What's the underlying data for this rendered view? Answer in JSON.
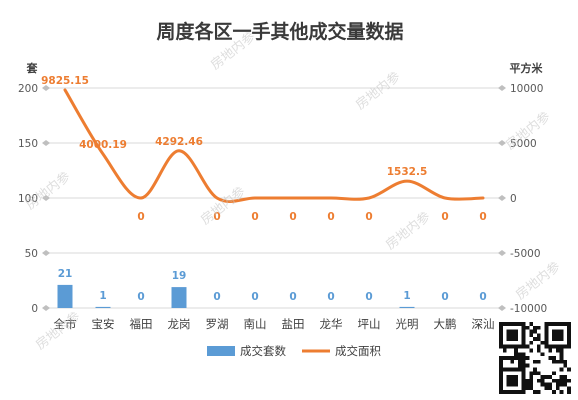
{
  "chart_data": {
    "type": "bar+line",
    "title": "周度各区一手其他成交量数据",
    "categories": [
      "全市",
      "宝安",
      "福田",
      "龙岗",
      "罗湖",
      "南山",
      "盐田",
      "龙华",
      "坪山",
      "光明",
      "大鹏",
      "深汕"
    ],
    "series": [
      {
        "name": "成交套数",
        "type": "bar",
        "axis": "left",
        "color": "#5b9bd5",
        "values": [
          21,
          1,
          0,
          19,
          0,
          0,
          0,
          0,
          0,
          1,
          0,
          0
        ],
        "labels": [
          "21",
          "1",
          "0",
          "19",
          "0",
          "0",
          "0",
          "0",
          "0",
          "1",
          "0",
          "0"
        ]
      },
      {
        "name": "成交面积",
        "type": "line",
        "axis": "right",
        "color": "#ed7d31",
        "values": [
          9825.15,
          4000.19,
          0,
          4292.46,
          0,
          0,
          0,
          0,
          0,
          1532.5,
          0,
          0
        ],
        "labels": [
          "9825.15",
          "4000.19",
          "0",
          "4292.46",
          "0",
          "0",
          "0",
          "0",
          "0",
          "1532.5",
          "0",
          "0"
        ]
      }
    ],
    "y_left": {
      "label": "套",
      "min": 0,
      "max": 200,
      "ticks": [
        "0",
        "50",
        "100",
        "150",
        "200"
      ]
    },
    "y_right": {
      "label": "平方米",
      "min": -10000,
      "max": 10000,
      "ticks": [
        "-10000",
        "-5000",
        "0",
        "5000",
        "10000"
      ]
    },
    "grid": true,
    "legend": "bottom"
  },
  "watermark": "房地内参"
}
